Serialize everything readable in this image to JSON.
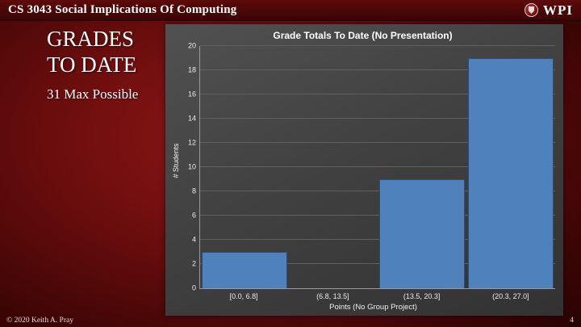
{
  "header": {
    "title": "CS 3043 Social Implications Of Computing",
    "logo_text": "WPI"
  },
  "slide": {
    "title_line1": "GRADES",
    "title_line2": "TO DATE",
    "subtitle": "31 Max Possible"
  },
  "footer": {
    "copyright": "© 2020 Keith A. Pray",
    "page_number": "4"
  },
  "colors": {
    "bar_fill": "#4f81bd",
    "bar_border": "#2e4d73",
    "gridline": "#606060"
  },
  "chart_data": {
    "type": "bar",
    "title": "Grade Totals To Date (No Presentation)",
    "categories": [
      "[0.0, 6.8]",
      "(6.8, 13.5]",
      "(13.5, 20.3]",
      "(20.3, 27.0]"
    ],
    "values": [
      3,
      0,
      9,
      19
    ],
    "xlabel": "Points (No Group Project)",
    "ylabel": "# Students",
    "ylim": [
      0,
      20
    ],
    "ytick_step": 2,
    "grid": true,
    "legend": "none"
  }
}
